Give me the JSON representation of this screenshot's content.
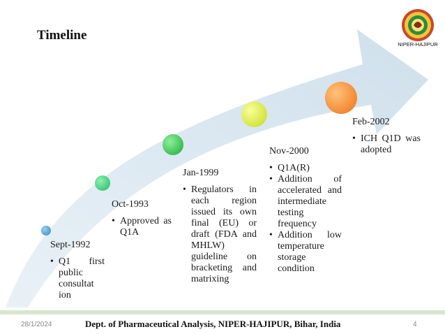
{
  "slide": {
    "title": "Timeline",
    "logo_text": "NIPER-HAJIPUR"
  },
  "milestones": [
    {
      "date": "Sept-1992",
      "bullets": [
        "Q1 first public consultat ion"
      ],
      "color": "#3a8fc9"
    },
    {
      "date": "Oct-1993",
      "bullets": [
        "Approved as Q1A"
      ],
      "color": "#2ecc71"
    },
    {
      "date": "Jan-1999",
      "bullets": [
        "Regulators in each region issued its own final (EU) or draft (FDA and MHLW) guideline on bracketing and matrixing"
      ],
      "color": "#1db954"
    },
    {
      "date": "Nov-2000",
      "bullets": [
        "Q1A(R)",
        "Addition of accelerated and intermediate testing frequency",
        "Addition low temperature storage condition"
      ],
      "color": "#d8e61a"
    },
    {
      "date": "Feb-2002",
      "bullets": [
        "ICH Q1D was adopted"
      ],
      "color": "#f07a1e"
    }
  ],
  "footer": {
    "date": "28/1/2024",
    "department": "Dept. of Pharmaceutical Analysis, NIPER-HAJIPUR, Bihar, India",
    "page": "4"
  },
  "colors": {
    "arrow_fill": "#dbe8f1",
    "footer_line": "#d7e6cd"
  }
}
